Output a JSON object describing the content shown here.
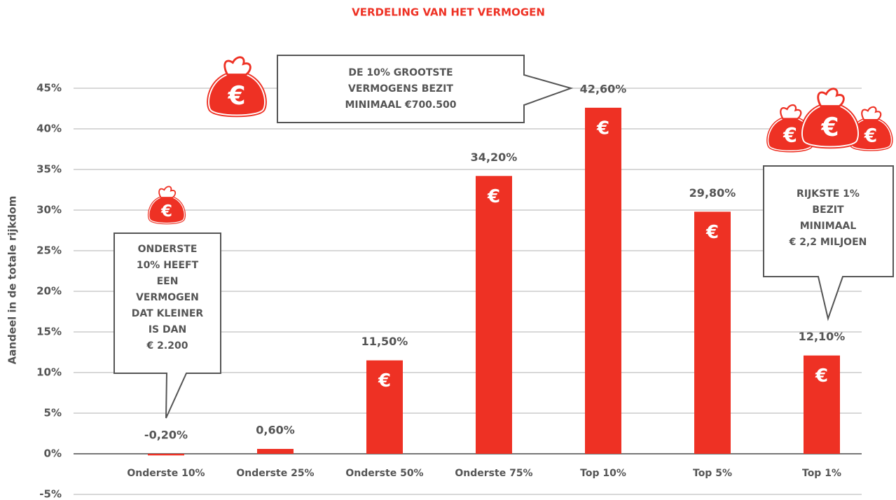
{
  "chart_data": {
    "type": "bar",
    "title": "VERDELING VAN HET VERMOGEN",
    "y_axis_label": "Aandeel in de totale rijkdom",
    "categories": [
      "Onderste 10%",
      "Onderste 25%",
      "Onderste 50%",
      "Onderste 75%",
      "Top 10%",
      "Top 5%",
      "Top 1%"
    ],
    "values": [
      -0.2,
      0.6,
      11.5,
      34.2,
      42.6,
      29.8,
      12.1
    ],
    "value_labels": [
      "-0,20%",
      "0,60%",
      "11,50%",
      "34,20%",
      "42,60%",
      "29,80%",
      "12,10%"
    ],
    "color": "#ee3124",
    "bar_symbol": "€",
    "ylim": [
      -5,
      45
    ],
    "yticks": [
      {
        "value": -5,
        "label": "-5%"
      },
      {
        "value": 0,
        "label": "0%"
      },
      {
        "value": 5,
        "label": "5%"
      },
      {
        "value": 10,
        "label": "10%"
      },
      {
        "value": 15,
        "label": "15%"
      },
      {
        "value": 20,
        "label": "20%"
      },
      {
        "value": 25,
        "label": "25%"
      },
      {
        "value": 30,
        "label": "30%"
      },
      {
        "value": 35,
        "label": "35%"
      },
      {
        "value": 40,
        "label": "40%"
      },
      {
        "value": 45,
        "label": "45%"
      }
    ],
    "grid": true,
    "annotations": [
      {
        "lines": [
          "ONDERSTE",
          "10%  HEEFT",
          "EEN",
          "VERMOGEN",
          "DAT KLEINER",
          "IS DAN",
          "€ 2.200"
        ]
      },
      {
        "lines": [
          "DE 10% GROOTSTE",
          "VERMOGENS BEZIT",
          "MINIMAAL €700.500"
        ]
      },
      {
        "lines": [
          "RIJKSTE 1%",
          "BEZIT",
          "MINIMAAL",
          "€ 2,2 MILJOEN"
        ]
      }
    ]
  }
}
